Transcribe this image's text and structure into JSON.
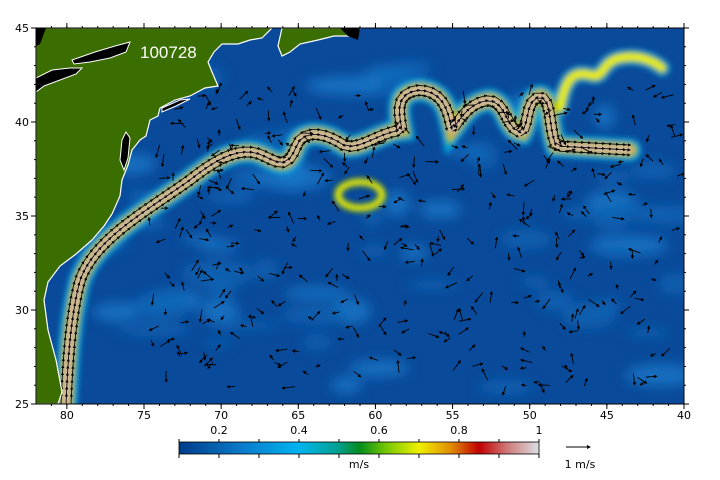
{
  "map": {
    "date_label": "100728",
    "lon_ticks": [
      "80",
      "75",
      "70",
      "65",
      "60",
      "55",
      "50",
      "45",
      "40"
    ],
    "lat_ticks": [
      "45",
      "40",
      "35",
      "30",
      "25"
    ],
    "lon_range_w": [
      82,
      40
    ],
    "lat_range_n": [
      25,
      45
    ],
    "colors": {
      "land": "#3a6e00",
      "ocean": "#0a4a9a",
      "lakes": "#000000",
      "coast": "#ffffff"
    }
  },
  "colorbar": {
    "ticks": [
      "0.2",
      "0.4",
      "0.6",
      "0.8",
      "1"
    ],
    "tick_values": [
      0.2,
      0.4,
      0.6,
      0.8,
      1.0
    ],
    "range": [
      0.1,
      1.0
    ],
    "unit_label": "m/s",
    "stops": [
      {
        "v": 0.1,
        "c": "#003c8a"
      },
      {
        "v": 0.25,
        "c": "#0a78c8"
      },
      {
        "v": 0.4,
        "c": "#00b4f0"
      },
      {
        "v": 0.5,
        "c": "#00a08c"
      },
      {
        "v": 0.55,
        "c": "#008c1e"
      },
      {
        "v": 0.62,
        "c": "#7ac800"
      },
      {
        "v": 0.7,
        "c": "#f0f000"
      },
      {
        "v": 0.78,
        "c": "#e08c00"
      },
      {
        "v": 0.85,
        "c": "#c00000"
      },
      {
        "v": 0.92,
        "c": "#d07878"
      },
      {
        "v": 1.0,
        "c": "#dce0e4"
      }
    ]
  },
  "vector_scale": {
    "label": "1 m/s",
    "icon": "arrow-right-icon"
  }
}
